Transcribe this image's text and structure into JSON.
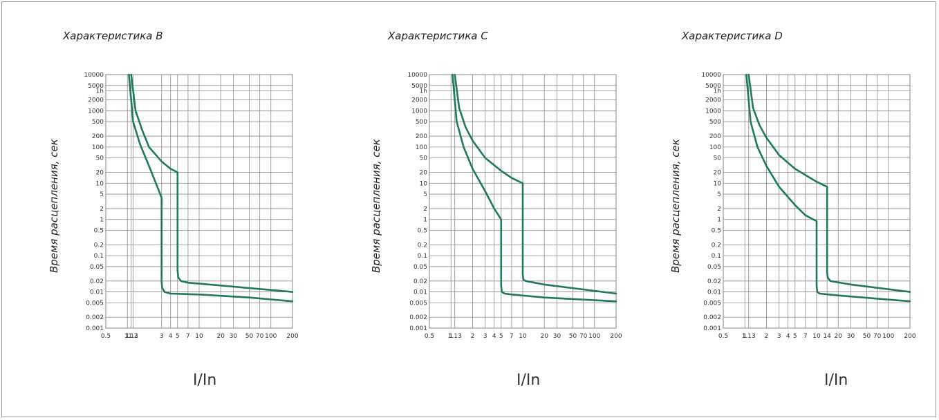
{
  "chart_data": [
    {
      "type": "line",
      "title": "Характеристика B",
      "xlabel": "I/In",
      "ylabel": "Время расцепления, сек",
      "x_scale": "log",
      "y_scale": "log",
      "xlim": [
        0.5,
        200
      ],
      "ylim": [
        0.001,
        10000
      ],
      "x_ticks": [
        "0.5",
        "1",
        "1.13",
        "1.2",
        "3",
        "4",
        "5",
        "7",
        "10",
        "20",
        "30",
        "50",
        "70",
        "100",
        "200"
      ],
      "y_ticks": [
        "10000",
        "5000",
        "1h",
        "2000",
        "1000",
        "500",
        "200",
        "100",
        "50",
        "20",
        "10",
        "5",
        "2",
        "1",
        "0.5",
        "0.2",
        "0.1",
        "0.05",
        "0.02",
        "0.01",
        "0.005",
        "0.002",
        "0.001"
      ],
      "line_color": "#1e7a5a",
      "series": [
        {
          "x": [
            1.05,
            1.2,
            1.5,
            2,
            2.5,
            3,
            3,
            3.05,
            3.3,
            4,
            10,
            50,
            200
          ],
          "y": [
            10000,
            500,
            120,
            30,
            10,
            4,
            0.02,
            0.013,
            0.01,
            0.009,
            0.0085,
            0.007,
            0.0055
          ]
        },
        {
          "x": [
            1.13,
            1.3,
            1.6,
            2,
            3,
            4,
            5,
            5,
            5.1,
            5.6,
            7,
            20,
            200
          ],
          "y": [
            10000,
            1000,
            300,
            100,
            40,
            25,
            20,
            0.04,
            0.025,
            0.02,
            0.018,
            0.015,
            0.01
          ]
        }
      ]
    },
    {
      "type": "line",
      "title": "Характеристика C",
      "xlabel": "I/In",
      "ylabel": "Время расцепления, сек",
      "x_scale": "log",
      "y_scale": "log",
      "xlim": [
        0.5,
        200
      ],
      "ylim": [
        0.001,
        10000
      ],
      "x_ticks": [
        "0.5",
        "1",
        "1.13",
        "2",
        "3",
        "4",
        "5",
        "7",
        "10",
        "20",
        "30",
        "50",
        "70",
        "100",
        "200"
      ],
      "y_ticks": [
        "10000",
        "5000",
        "1h",
        "2000",
        "1000",
        "500",
        "200",
        "100",
        "50",
        "20",
        "10",
        "5",
        "2",
        "1",
        "0.5",
        "0.2",
        "0.1",
        "0.05",
        "0.02",
        "0.01",
        "0.005",
        "0.002",
        "0.001"
      ],
      "line_color": "#1e7a5a",
      "series": [
        {
          "x": [
            1.05,
            1.2,
            1.5,
            2,
            3,
            4,
            5,
            5,
            5.1,
            5.6,
            7,
            20,
            200
          ],
          "y": [
            10000,
            500,
            100,
            25,
            6,
            2,
            1,
            0.015,
            0.01,
            0.009,
            0.0085,
            0.007,
            0.0055
          ]
        },
        {
          "x": [
            1.13,
            1.3,
            1.6,
            2,
            3,
            5,
            7,
            10,
            10,
            10.2,
            11,
            20,
            200
          ],
          "y": [
            10000,
            1200,
            350,
            150,
            50,
            22,
            14,
            10,
            0.03,
            0.022,
            0.02,
            0.016,
            0.009
          ]
        }
      ]
    },
    {
      "type": "line",
      "title": "Характеристика D",
      "xlabel": "I/In",
      "ylabel": "Время расцепления, сек",
      "x_scale": "log",
      "y_scale": "log",
      "xlim": [
        0.5,
        200
      ],
      "ylim": [
        0.001,
        10000
      ],
      "x_ticks": [
        "0.5",
        "1",
        "1.13",
        "2",
        "3",
        "4",
        "5",
        "7",
        "10",
        "14",
        "20",
        "30",
        "50",
        "70",
        "100",
        "200"
      ],
      "y_ticks": [
        "10000",
        "5000",
        "1h",
        "2000",
        "1000",
        "500",
        "200",
        "100",
        "50",
        "20",
        "10",
        "5",
        "2",
        "1",
        "0.5",
        "0.2",
        "0.1",
        "0.05",
        "0.02",
        "0.01",
        "0.005",
        "0.002",
        "0.001"
      ],
      "line_color": "#1e7a5a",
      "series": [
        {
          "x": [
            1.05,
            1.2,
            1.5,
            2,
            3,
            5,
            7,
            10,
            10,
            10.2,
            11,
            20,
            200
          ],
          "y": [
            10000,
            500,
            100,
            30,
            8,
            2.5,
            1.3,
            0.9,
            0.015,
            0.01,
            0.009,
            0.008,
            0.0055
          ]
        },
        {
          "x": [
            1.13,
            1.3,
            1.6,
            2,
            3,
            5,
            10,
            14,
            14,
            14.3,
            15.5,
            30,
            200
          ],
          "y": [
            10000,
            1200,
            400,
            180,
            60,
            25,
            11,
            8,
            0.035,
            0.025,
            0.02,
            0.016,
            0.01
          ]
        }
      ]
    }
  ]
}
